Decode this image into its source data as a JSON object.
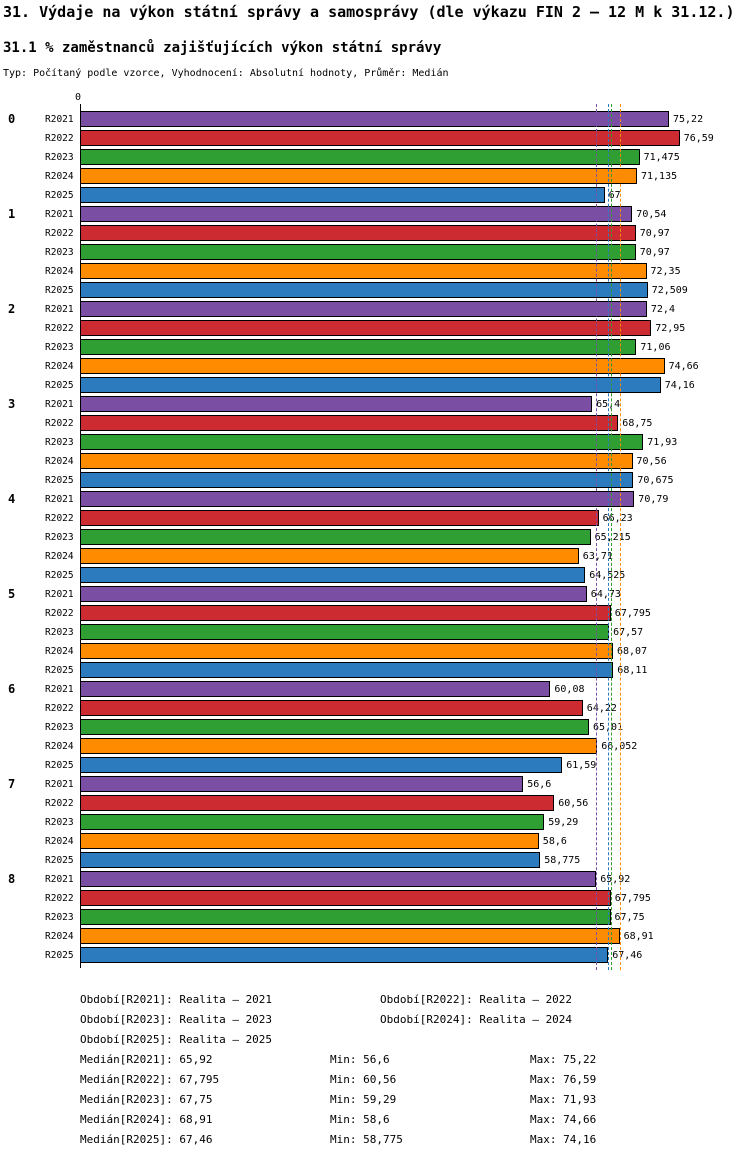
{
  "title": "31. Výdaje na výkon státní správy a samosprávy (dle výkazu FIN 2 – 12 M k 31.12.)",
  "subtitle": "31.1 % zaměstnanců zajišťujících výkon státní správy",
  "meta": "Typ: Počítaný podle vzorce, Vyhodnocení: Absolutní hodnoty, Průměr: Medián",
  "chart_data": {
    "type": "bar",
    "orientation": "horizontal",
    "x_origin_label": "0",
    "grid": false,
    "median_lines": true,
    "value_format": "decimal-comma",
    "categories": [
      "0",
      "1",
      "2",
      "3",
      "4",
      "5",
      "6",
      "7",
      "8"
    ],
    "series": [
      {
        "name": "R2021",
        "color": "#7a4fa3",
        "median": 65.92,
        "min": 56.6,
        "max": 75.22,
        "values": [
          75.22,
          70.54,
          72.4,
          65.4,
          70.79,
          64.73,
          60.08,
          56.6,
          65.92
        ]
      },
      {
        "name": "R2022",
        "color": "#cb2b31",
        "median": 67.795,
        "min": 60.56,
        "max": 76.59,
        "values": [
          76.59,
          70.97,
          72.95,
          68.75,
          66.23,
          67.795,
          64.22,
          60.56,
          67.795
        ]
      },
      {
        "name": "R2023",
        "color": "#2f9e33",
        "median": 67.75,
        "min": 59.29,
        "max": 71.93,
        "values": [
          71.475,
          70.97,
          71.06,
          71.93,
          65.215,
          67.57,
          65.01,
          59.29,
          67.75
        ]
      },
      {
        "name": "R2024",
        "color": "#ff8c00",
        "median": 68.91,
        "min": 58.6,
        "max": 74.66,
        "values": [
          71.135,
          72.35,
          74.66,
          70.56,
          63.71,
          68.07,
          66.052,
          58.6,
          68.91
        ]
      },
      {
        "name": "R2025",
        "color": "#2b7bbe",
        "median": 67.46,
        "min": 58.775,
        "max": 74.16,
        "values": [
          67,
          72.509,
          74.16,
          70.675,
          64.525,
          68.11,
          61.59,
          58.775,
          67.46
        ]
      }
    ]
  },
  "legend": {
    "rows": [
      [
        "Období[R2021]: Realita – 2021",
        "Období[R2022]: Realita – 2022"
      ],
      [
        "Období[R2023]: Realita – 2023",
        "Období[R2024]: Realita – 2024"
      ],
      [
        "Období[R2025]: Realita – 2025"
      ]
    ]
  },
  "stats": {
    "rows": [
      {
        "median": "Medián[R2021]: 65,92",
        "min": "Min: 56,6",
        "max": "Max: 75,22"
      },
      {
        "median": "Medián[R2022]: 67,795",
        "min": "Min: 60,56",
        "max": "Max: 76,59"
      },
      {
        "median": "Medián[R2023]: 67,75",
        "min": "Min: 59,29",
        "max": "Max: 71,93"
      },
      {
        "median": "Medián[R2024]: 68,91",
        "min": "Min: 58,6",
        "max": "Max: 74,66"
      },
      {
        "median": "Medián[R2025]: 67,46",
        "min": "Min: 58,775",
        "max": "Max: 74,16"
      }
    ]
  }
}
